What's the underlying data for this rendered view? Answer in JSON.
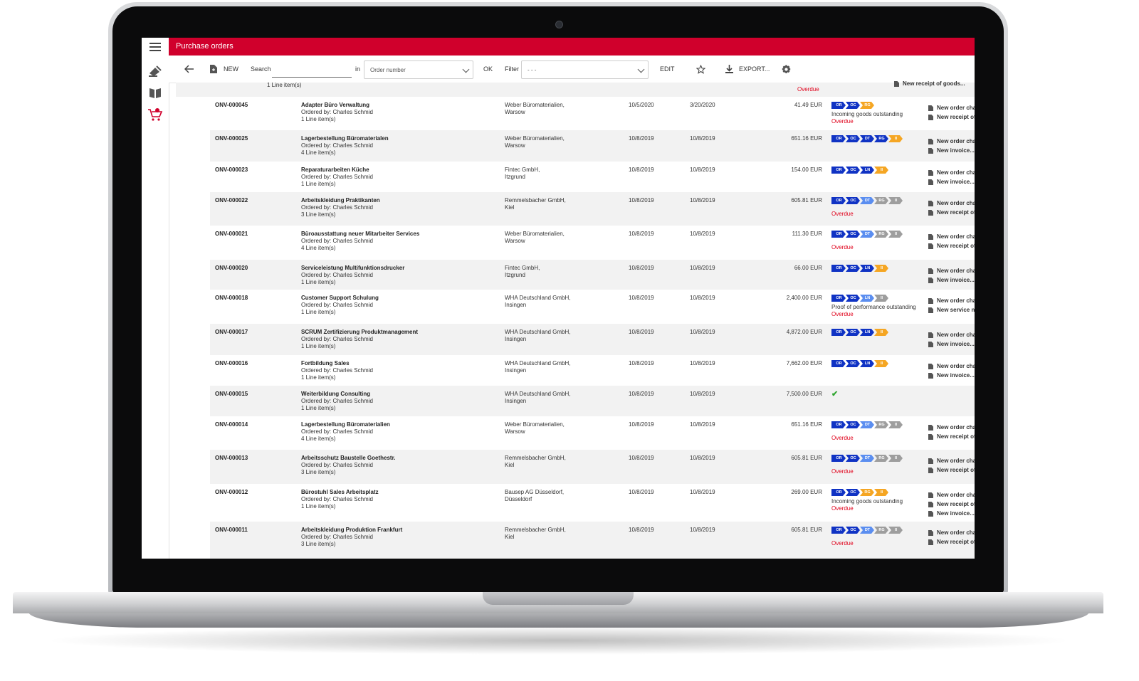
{
  "app": {
    "title": "Purchase orders"
  },
  "toolbar": {
    "new_label": "NEW",
    "search_label": "Search",
    "search_value": "",
    "in_label": "in",
    "search_field_value": "Order number",
    "ok_label": "OK",
    "filter_label": "Filter",
    "filter_value": "- - -",
    "edit_label": "EDIT",
    "export_label": "EXPORT..."
  },
  "sidebar": {
    "items": [
      {
        "icon": "menu-icon"
      },
      {
        "icon": "stamp-icon"
      },
      {
        "icon": "book-icon"
      },
      {
        "icon": "cart-icon",
        "active": true
      }
    ]
  },
  "colors": {
    "brand": "#d0002c",
    "chip_blue": "#1033c4",
    "chip_lightblue": "#5b8ef0",
    "chip_orange": "#f5a623",
    "chip_gray": "#9e9e9e",
    "overdue": "#e0001a",
    "ok_green": "#2ea52e"
  },
  "partial_row": {
    "desc_line": "1 Line item(s)",
    "status": "Overdue",
    "action": "New receipt of goods..."
  },
  "orders": [
    {
      "id": "ONV-000045",
      "title": "Adapter Büro Verwaltung",
      "ordered_by": "Ordered by: Charles Schmid",
      "items": "1 Line item(s)",
      "supplier1": "Weber Büromaterialien,",
      "supplier2": "Warsow",
      "date1": "10/5/2020",
      "date2": "3/20/2020",
      "amount": "41.49 EUR",
      "chips": [
        {
          "label": "OR",
          "color": "blue"
        },
        {
          "label": "OC",
          "color": "blue"
        },
        {
          "label": "RG",
          "color": "orange"
        }
      ],
      "status_text": "Incoming goods outstanding",
      "overdue": "Overdue",
      "actions": [
        "New order change...",
        "New receipt of goods..."
      ]
    },
    {
      "id": "ONV-000025",
      "title": "Lagerbestellung Büromaterialen",
      "ordered_by": "Ordered by: Charles Schmid",
      "items": "4 Line item(s)",
      "supplier1": "Weber Büromaterialien,",
      "supplier2": "Warsow",
      "date1": "10/8/2019",
      "date2": "10/8/2019",
      "amount": "651.16 EUR",
      "chips": [
        {
          "label": "OR",
          "color": "blue"
        },
        {
          "label": "OC",
          "color": "blue"
        },
        {
          "label": "DT",
          "color": "blue"
        },
        {
          "label": "RG",
          "color": "blue"
        },
        {
          "label": "II",
          "color": "orange"
        }
      ],
      "status_text": "",
      "overdue": "",
      "actions": [
        "New order change...",
        "New invoice..."
      ]
    },
    {
      "id": "ONV-000023",
      "title": "Reparaturarbeiten Küche",
      "ordered_by": "Ordered by: Charles Schmid",
      "items": "1 Line item(s)",
      "supplier1": "Fintec GmbH,",
      "supplier2": "Itzgrund",
      "date1": "10/8/2019",
      "date2": "10/8/2019",
      "amount": "154.00 EUR",
      "chips": [
        {
          "label": "OR",
          "color": "blue"
        },
        {
          "label": "OC",
          "color": "blue"
        },
        {
          "label": "LN",
          "color": "blue"
        },
        {
          "label": "II",
          "color": "orange"
        }
      ],
      "status_text": "",
      "overdue": "",
      "actions": [
        "New order change...",
        "New invoice..."
      ]
    },
    {
      "id": "ONV-000022",
      "title": "Arbeitskleidung Praktikanten",
      "ordered_by": "Ordered by: Charles Schmid",
      "items": "3 Line item(s)",
      "supplier1": "Remmelsbacher GmbH,",
      "supplier2": "Kiel",
      "date1": "10/8/2019",
      "date2": "10/8/2019",
      "amount": "605.81 EUR",
      "chips": [
        {
          "label": "OR",
          "color": "blue"
        },
        {
          "label": "OC",
          "color": "blue"
        },
        {
          "label": "DT",
          "color": "lightblue"
        },
        {
          "label": "RG",
          "color": "gray"
        },
        {
          "label": "II",
          "color": "gray"
        }
      ],
      "status_text": "",
      "overdue": "Overdue",
      "actions": [
        "New order change...",
        "New receipt of goods..."
      ]
    },
    {
      "id": "ONV-000021",
      "title": "Büroausstattung neuer Mitarbeiter Services",
      "ordered_by": "Ordered by: Charles Schmid",
      "items": "4 Line item(s)",
      "supplier1": "Weber Büromaterialien,",
      "supplier2": "Warsow",
      "date1": "10/8/2019",
      "date2": "10/8/2019",
      "amount": "111.30 EUR",
      "chips": [
        {
          "label": "OR",
          "color": "blue"
        },
        {
          "label": "OC",
          "color": "blue"
        },
        {
          "label": "DT",
          "color": "lightblue"
        },
        {
          "label": "RG",
          "color": "gray"
        },
        {
          "label": "II",
          "color": "gray"
        }
      ],
      "status_text": "",
      "overdue": "Overdue",
      "actions": [
        "New order change...",
        "New receipt of goods..."
      ]
    },
    {
      "id": "ONV-000020",
      "title": "Serviceleistung Multifunktionsdrucker",
      "ordered_by": "Ordered by: Charles Schmid",
      "items": "1 Line item(s)",
      "supplier1": "Fintec GmbH,",
      "supplier2": "Itzgrund",
      "date1": "10/8/2019",
      "date2": "10/8/2019",
      "amount": "66.00 EUR",
      "chips": [
        {
          "label": "OR",
          "color": "blue"
        },
        {
          "label": "OC",
          "color": "blue"
        },
        {
          "label": "LN",
          "color": "blue"
        },
        {
          "label": "II",
          "color": "orange"
        }
      ],
      "status_text": "",
      "overdue": "",
      "actions": [
        "New order change...",
        "New invoice..."
      ]
    },
    {
      "id": "ONV-000018",
      "title": "Customer Support Schulung",
      "ordered_by": "Ordered by: Charles Schmid",
      "items": "1 Line item(s)",
      "supplier1": "WHA Deutschland GmbH,",
      "supplier2": "Insingen",
      "date1": "10/8/2019",
      "date2": "10/8/2019",
      "amount": "2,400.00 EUR",
      "chips": [
        {
          "label": "OR",
          "color": "blue"
        },
        {
          "label": "OC",
          "color": "blue"
        },
        {
          "label": "LN",
          "color": "lightblue"
        },
        {
          "label": "II",
          "color": "gray"
        }
      ],
      "status_text": "Proof of performance outstanding",
      "overdue": "Overdue",
      "actions": [
        "New order change...",
        "New service note..."
      ]
    },
    {
      "id": "ONV-000017",
      "title": "SCRUM Zertifizierung Produktmanagement",
      "ordered_by": "Ordered by: Charles Schmid",
      "items": "1 Line item(s)",
      "supplier1": "WHA Deutschland GmbH,",
      "supplier2": "Insingen",
      "date1": "10/8/2019",
      "date2": "10/8/2019",
      "amount": "4,872.00 EUR",
      "chips": [
        {
          "label": "OR",
          "color": "blue"
        },
        {
          "label": "OC",
          "color": "blue"
        },
        {
          "label": "LN",
          "color": "blue"
        },
        {
          "label": "II",
          "color": "orange"
        }
      ],
      "status_text": "",
      "overdue": "",
      "actions": [
        "New order change...",
        "New invoice..."
      ]
    },
    {
      "id": "ONV-000016",
      "title": "Fortbildung Sales",
      "ordered_by": "Ordered by: Charles Schmid",
      "items": "1 Line item(s)",
      "supplier1": "WHA Deutschland GmbH,",
      "supplier2": "Insingen",
      "date1": "10/8/2019",
      "date2": "10/8/2019",
      "amount": "7,662.00 EUR",
      "chips": [
        {
          "label": "OR",
          "color": "blue"
        },
        {
          "label": "OC",
          "color": "blue"
        },
        {
          "label": "LN",
          "color": "blue"
        },
        {
          "label": "II",
          "color": "orange"
        }
      ],
      "status_text": "",
      "overdue": "",
      "actions": [
        "New order change...",
        "New invoice..."
      ]
    },
    {
      "id": "ONV-000015",
      "title": "Weiterbildung Consulting",
      "ordered_by": "Ordered by: Charles Schmid",
      "items": "1 Line item(s)",
      "supplier1": "WHA Deutschland GmbH,",
      "supplier2": "Insingen",
      "date1": "10/8/2019",
      "date2": "10/8/2019",
      "amount": "7,500.00 EUR",
      "chips": [],
      "check": true,
      "status_text": "",
      "overdue": "",
      "actions": []
    },
    {
      "id": "ONV-000014",
      "title": "Lagerbestellung Büromaterialien",
      "ordered_by": "Ordered by: Charles Schmid",
      "items": "4 Line item(s)",
      "supplier1": "Weber Büromaterialien,",
      "supplier2": "Warsow",
      "date1": "10/8/2019",
      "date2": "10/8/2019",
      "amount": "651.16 EUR",
      "chips": [
        {
          "label": "OR",
          "color": "blue"
        },
        {
          "label": "OC",
          "color": "blue"
        },
        {
          "label": "DT",
          "color": "lightblue"
        },
        {
          "label": "RG",
          "color": "gray"
        },
        {
          "label": "II",
          "color": "gray"
        }
      ],
      "status_text": "",
      "overdue": "Overdue",
      "actions": [
        "New order change...",
        "New receipt of goods..."
      ]
    },
    {
      "id": "ONV-000013",
      "title": "Arbeitsschutz Baustelle Goethestr.",
      "ordered_by": "Ordered by: Charles Schmid",
      "items": "3 Line item(s)",
      "supplier1": "Remmelsbacher GmbH,",
      "supplier2": "Kiel",
      "date1": "10/8/2019",
      "date2": "10/8/2019",
      "amount": "605.81 EUR",
      "chips": [
        {
          "label": "OR",
          "color": "blue"
        },
        {
          "label": "OC",
          "color": "blue"
        },
        {
          "label": "DT",
          "color": "lightblue"
        },
        {
          "label": "RG",
          "color": "gray"
        },
        {
          "label": "II",
          "color": "gray"
        }
      ],
      "status_text": "",
      "overdue": "Overdue",
      "actions": [
        "New order change...",
        "New receipt of goods..."
      ]
    },
    {
      "id": "ONV-000012",
      "title": "Bürostuhl Sales Arbeitsplatz",
      "ordered_by": "Ordered by: Charles Schmid",
      "items": "1 Line item(s)",
      "supplier1": "Bausep AG Düsseldorf,",
      "supplier2": "Düsseldorf",
      "date1": "10/8/2019",
      "date2": "10/8/2019",
      "amount": "269.00 EUR",
      "chips": [
        {
          "label": "OR",
          "color": "blue"
        },
        {
          "label": "OC",
          "color": "blue"
        },
        {
          "label": "RG",
          "color": "orange"
        },
        {
          "label": "II",
          "color": "orange"
        }
      ],
      "status_text": "Incoming goods outstanding",
      "overdue": "Overdue",
      "actions": [
        "New order change...",
        "New receipt of goods...",
        "New invoice..."
      ]
    },
    {
      "id": "ONV-000011",
      "title": "Arbeitskleidung Produktion Frankfurt",
      "ordered_by": "Ordered by: Charles Schmid",
      "items": "3 Line item(s)",
      "supplier1": "Remmelsbacher GmbH,",
      "supplier2": "Kiel",
      "date1": "10/8/2019",
      "date2": "10/8/2019",
      "amount": "605.81 EUR",
      "chips": [
        {
          "label": "OR",
          "color": "blue"
        },
        {
          "label": "OC",
          "color": "blue"
        },
        {
          "label": "DT",
          "color": "lightblue"
        },
        {
          "label": "RG",
          "color": "gray"
        },
        {
          "label": "II",
          "color": "gray"
        }
      ],
      "status_text": "",
      "overdue": "Overdue",
      "actions": [
        "New order change...",
        "New receipt of goods..."
      ]
    }
  ]
}
